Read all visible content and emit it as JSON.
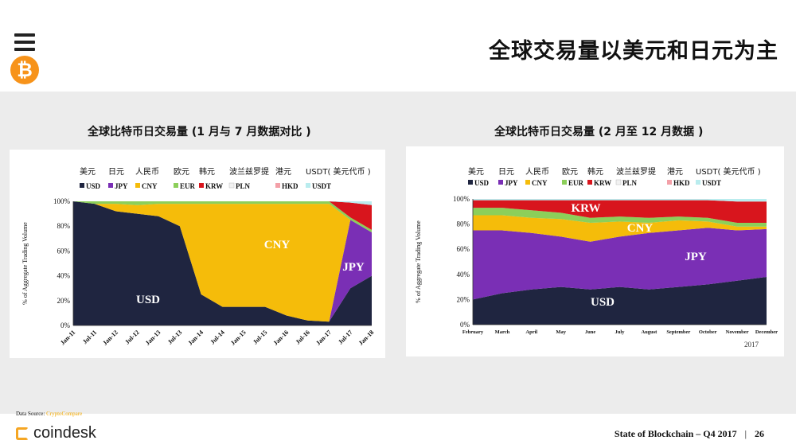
{
  "header": {
    "title": "全球交易量以美元和日元为主",
    "btc_symbol": "₿"
  },
  "charts_titles": {
    "left": "全球比特币日交易量 (1 月与 7 月数据对比 )",
    "right": "全球比特币日交易量 (2 月至 12 月数据 )"
  },
  "footer": {
    "source_label": "Data Source: ",
    "source_value": "CryptoCompare",
    "logo_text": "coindesk",
    "report": "State of Blockchain – Q4 2017",
    "separator": "|",
    "page_number": "26"
  },
  "colors": {
    "USD": "#1f2540",
    "JPY": "#7a2fb5",
    "CNY": "#f5bc0a",
    "EUR": "#8ccf5a",
    "KRW": "#d8151d",
    "PLN": "#f2f2f2",
    "HKD": "#f3a0a8",
    "USDT": "#b9ecee"
  },
  "chart_data": [
    {
      "type": "area",
      "stacked": true,
      "ylabel": "% of Aggregate Trading Volume",
      "ylim": [
        0,
        100
      ],
      "yticks": [
        "0%",
        "20%",
        "40%",
        "60%",
        "80%",
        "100%"
      ],
      "x": [
        "Jan-11",
        "Jul-11",
        "Jan-12",
        "Jul-12",
        "Jan-13",
        "Jul-13",
        "Jan-14",
        "Jul-14",
        "Jan-15",
        "Jul-15",
        "Jan-16",
        "Jul-16",
        "Jan-17",
        "Jul-17",
        "Jan-18"
      ],
      "legend_cn": [
        "美元",
        "日元",
        "人民币",
        "欧元",
        "韩元",
        "波兰兹罗提",
        "港元",
        "USDT( 美元代币 )"
      ],
      "legend": [
        "USD",
        "JPY",
        "CNY",
        "EUR",
        "KRW",
        "PLN",
        "HKD",
        "USDT"
      ],
      "annotations": [
        "USD",
        "CNY",
        "JPY"
      ],
      "series": [
        {
          "name": "USD",
          "values": [
            100,
            98,
            92,
            90,
            88,
            80,
            25,
            15,
            15,
            15,
            8,
            4,
            3,
            30,
            40
          ]
        },
        {
          "name": "JPY",
          "values": [
            0,
            0,
            0,
            0,
            0,
            0,
            0,
            0,
            0,
            0,
            0,
            0,
            0,
            55,
            35
          ]
        },
        {
          "name": "CNY",
          "values": [
            0,
            0,
            6,
            7,
            10,
            18,
            73,
            83,
            83,
            83,
            90,
            94,
            95,
            0,
            0
          ]
        },
        {
          "name": "EUR",
          "values": [
            0,
            2,
            2,
            3,
            2,
            2,
            2,
            2,
            2,
            2,
            2,
            2,
            2,
            2,
            2
          ]
        },
        {
          "name": "KRW",
          "values": [
            0,
            0,
            0,
            0,
            0,
            0,
            0,
            0,
            0,
            0,
            0,
            0,
            0,
            12,
            20
          ]
        },
        {
          "name": "PLN",
          "values": [
            0,
            0,
            0,
            0,
            0,
            0,
            0,
            0,
            0,
            0,
            0,
            0,
            0,
            0,
            0
          ]
        },
        {
          "name": "HKD",
          "values": [
            0,
            0,
            0,
            0,
            0,
            0,
            0,
            0,
            0,
            0,
            0,
            0,
            0,
            0,
            0
          ]
        },
        {
          "name": "USDT",
          "values": [
            0,
            0,
            0,
            0,
            0,
            0,
            0,
            0,
            0,
            1,
            0,
            0,
            0,
            1,
            3
          ]
        }
      ]
    },
    {
      "type": "area",
      "stacked": true,
      "ylabel": "% of Aggregate Trading Volume",
      "ylim": [
        0,
        100
      ],
      "yticks": [
        "0%",
        "20%",
        "40%",
        "60%",
        "80%",
        "100%"
      ],
      "x": [
        "February",
        "March",
        "April",
        "May",
        "June",
        "July",
        "August",
        "September",
        "October",
        "November",
        "December"
      ],
      "year_label": "2017",
      "legend_cn": [
        "美元",
        "日元",
        "人民币",
        "欧元",
        "韩元",
        "波兰兹罗提",
        "港元",
        "USDT( 美元代币 )"
      ],
      "legend": [
        "USD",
        "JPY",
        "CNY",
        "EUR",
        "KRW",
        "PLN",
        "HKD",
        "USDT"
      ],
      "annotations": [
        "KRW",
        "CNY",
        "JPY",
        "USD"
      ],
      "series": [
        {
          "name": "USD",
          "values": [
            20,
            25,
            28,
            30,
            28,
            30,
            28,
            30,
            32,
            35,
            38
          ]
        },
        {
          "name": "JPY",
          "values": [
            55,
            50,
            45,
            40,
            38,
            40,
            45,
            45,
            45,
            40,
            38
          ]
        },
        {
          "name": "CNY",
          "values": [
            12,
            12,
            12,
            14,
            15,
            12,
            8,
            8,
            5,
            3,
            2
          ]
        },
        {
          "name": "EUR",
          "values": [
            6,
            6,
            6,
            5,
            4,
            4,
            4,
            3,
            3,
            3,
            3
          ]
        },
        {
          "name": "KRW",
          "values": [
            6,
            6,
            8,
            10,
            14,
            13,
            14,
            13,
            14,
            17,
            17
          ]
        },
        {
          "name": "PLN",
          "values": [
            0,
            0,
            0,
            0,
            0,
            0,
            0,
            0,
            0,
            0,
            0
          ]
        },
        {
          "name": "HKD",
          "values": [
            0,
            0,
            0,
            0,
            0,
            0,
            0,
            0,
            0,
            0,
            0
          ]
        },
        {
          "name": "USDT",
          "values": [
            1,
            1,
            1,
            1,
            1,
            1,
            1,
            1,
            1,
            2,
            2
          ]
        }
      ]
    }
  ]
}
